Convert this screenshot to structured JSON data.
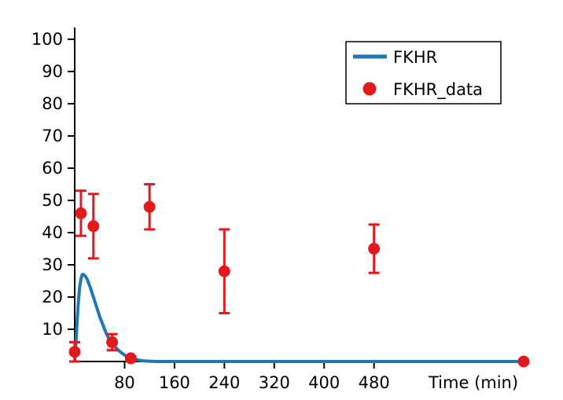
{
  "chart_data": {
    "type": "scatter",
    "xlabel": "Time (min)",
    "ylabel": "",
    "xlim": [
      0,
      720
    ],
    "ylim": [
      0,
      100
    ],
    "x_ticks": [
      80,
      160,
      240,
      320,
      400,
      480
    ],
    "y_ticks": [
      10,
      20,
      30,
      40,
      50,
      60,
      70,
      80,
      90,
      100
    ],
    "legend_position": "top-right",
    "grid": false,
    "series": [
      {
        "name": "FKHR",
        "kind": "line",
        "color": "#1f77b4",
        "x": [
          0,
          2,
          4,
          6,
          8,
          10,
          12,
          14,
          17,
          20,
          25,
          30,
          35,
          40,
          45,
          50,
          55,
          60,
          65,
          70,
          75,
          80,
          85,
          90,
          95,
          100,
          110,
          120,
          130,
          150,
          200,
          300,
          400,
          500,
          600,
          720
        ],
        "y": [
          0,
          6,
          13,
          19,
          23,
          25.5,
          27,
          27,
          26.5,
          25.5,
          23,
          20,
          17,
          14,
          11.5,
          9,
          7,
          5.5,
          4.5,
          3.5,
          2.7,
          2.0,
          1.5,
          1.0,
          0.7,
          0.5,
          0.2,
          0.1,
          0,
          0,
          0,
          0,
          0,
          0,
          0,
          0
        ]
      },
      {
        "name": "FKHR_data",
        "kind": "scatter",
        "color": "#e31a1c",
        "x": [
          0,
          10,
          30,
          60,
          90,
          120,
          240,
          480,
          720
        ],
        "y": [
          3,
          46,
          42,
          6,
          1,
          48,
          28,
          35,
          0
        ],
        "err": [
          3,
          7,
          10,
          2.5,
          0,
          7,
          13,
          7.5,
          0
        ]
      }
    ]
  }
}
